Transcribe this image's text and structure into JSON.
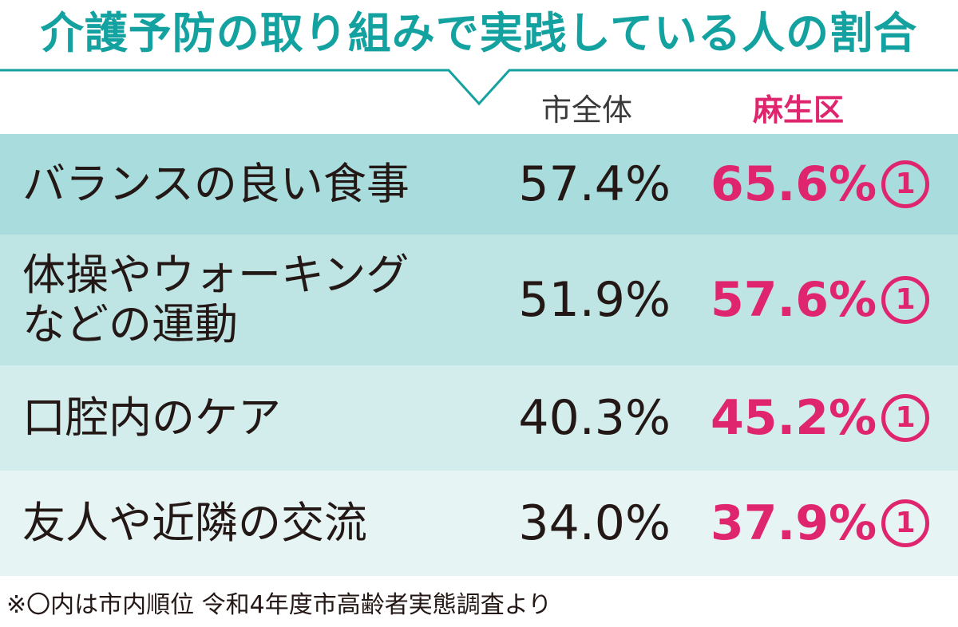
{
  "title": "介護予防の取り組みで実践している人の割合",
  "chart_data": {
    "type": "table",
    "columns": [
      "市全体",
      "麻生区"
    ],
    "rows": [
      {
        "label": "バランスの良い食事",
        "city": "57.4%",
        "asao": "65.6%",
        "rank": "1"
      },
      {
        "label": "体操やウォーキング\nなどの運動",
        "city": "51.9%",
        "asao": "57.6%",
        "rank": "1"
      },
      {
        "label": "口腔内のケア",
        "city": "40.3%",
        "asao": "45.2%",
        "rank": "1"
      },
      {
        "label": "友人や近隣の交流",
        "city": "34.0%",
        "asao": "37.9%",
        "rank": "1"
      }
    ]
  },
  "footnote": "※〇内は市内順位 令和4年度市高齢者実態調査より",
  "colors": {
    "title": "#14a2a0",
    "highlight": "#e0256f",
    "row_bands": [
      "#a9dcdc",
      "#bfe4e4",
      "#d3ecec",
      "#e6f4f4"
    ]
  }
}
